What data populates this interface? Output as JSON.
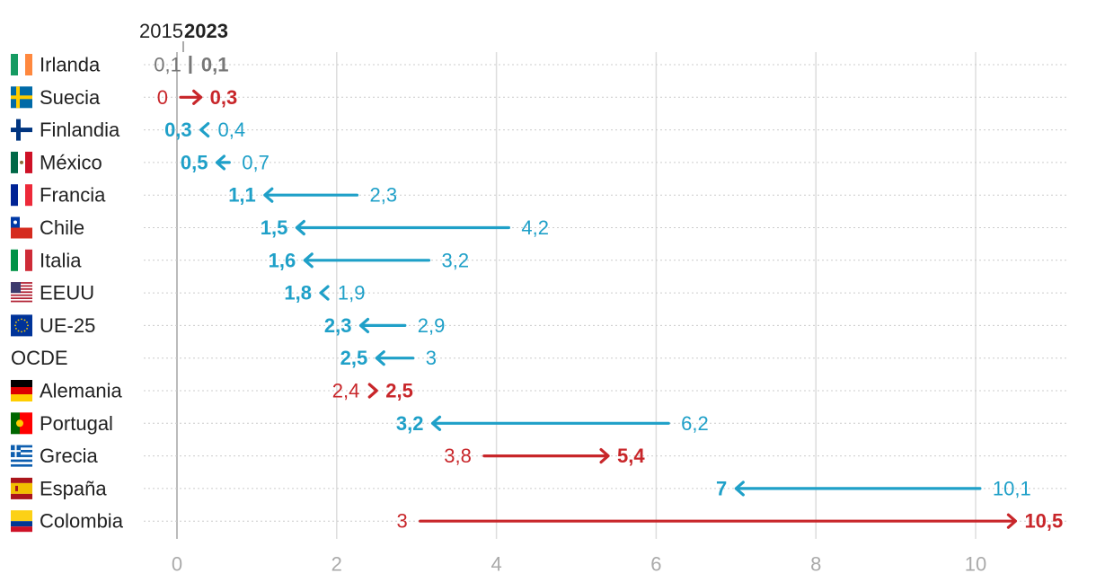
{
  "chart_data": {
    "type": "dumbbell-arrow",
    "legend": {
      "start_label": "2015",
      "end_label": "2023"
    },
    "colors": {
      "decrease": "#1fa0c8",
      "increase": "#c8262a",
      "unchanged": "#777777",
      "tick": "#aaaaaa",
      "grid": "#dddddd",
      "text": "#222222"
    },
    "x": {
      "min": 0,
      "max": 10.5,
      "ticks": [
        0,
        2,
        4,
        6,
        8,
        10
      ],
      "tick_labels": [
        "0",
        "2",
        "4",
        "6",
        "8",
        "10"
      ]
    },
    "grid": true,
    "rows": [
      {
        "country": "Irlanda",
        "flag": "ireland-flag",
        "v2015": 0.1,
        "v2023": 0.1,
        "l2015": "0,1",
        "l2023": "0,1"
      },
      {
        "country": "Suecia",
        "flag": "sweden-flag",
        "v2015": 0,
        "v2023": 0.3,
        "l2015": "0",
        "l2023": "0,3"
      },
      {
        "country": "Finlandia",
        "flag": "finland-flag",
        "v2015": 0.4,
        "v2023": 0.3,
        "l2015": "0,4",
        "l2023": "0,3"
      },
      {
        "country": "México",
        "flag": "mexico-flag",
        "v2015": 0.7,
        "v2023": 0.5,
        "l2015": "0,7",
        "l2023": "0,5"
      },
      {
        "country": "Francia",
        "flag": "france-flag",
        "v2015": 2.3,
        "v2023": 1.1,
        "l2015": "2,3",
        "l2023": "1,1"
      },
      {
        "country": "Chile",
        "flag": "chile-flag",
        "v2015": 4.2,
        "v2023": 1.5,
        "l2015": "4,2",
        "l2023": "1,5"
      },
      {
        "country": "Italia",
        "flag": "italy-flag",
        "v2015": 3.2,
        "v2023": 1.6,
        "l2015": "3,2",
        "l2023": "1,6"
      },
      {
        "country": "EEUU",
        "flag": "usa-flag",
        "v2015": 1.9,
        "v2023": 1.8,
        "l2015": "1,9",
        "l2023": "1,8"
      },
      {
        "country": "UE-25",
        "flag": "eu-flag",
        "v2015": 2.9,
        "v2023": 2.3,
        "l2015": "2,9",
        "l2023": "2,3"
      },
      {
        "country": "OCDE",
        "flag": "",
        "v2015": 3,
        "v2023": 2.5,
        "l2015": "3",
        "l2023": "2,5"
      },
      {
        "country": "Alemania",
        "flag": "germany-flag",
        "v2015": 2.4,
        "v2023": 2.5,
        "l2015": "2,4",
        "l2023": "2,5"
      },
      {
        "country": "Portugal",
        "flag": "portugal-flag",
        "v2015": 6.2,
        "v2023": 3.2,
        "l2015": "6,2",
        "l2023": "3,2"
      },
      {
        "country": "Grecia",
        "flag": "greece-flag",
        "v2015": 3.8,
        "v2023": 5.4,
        "l2015": "3,8",
        "l2023": "5,4"
      },
      {
        "country": "España",
        "flag": "spain-flag",
        "v2015": 10.1,
        "v2023": 7,
        "l2015": "10,1",
        "l2023": "7"
      },
      {
        "country": "Colombia",
        "flag": "colombia-flag",
        "v2015": 3,
        "v2023": 10.5,
        "l2015": "3",
        "l2023": "10,5"
      }
    ]
  }
}
